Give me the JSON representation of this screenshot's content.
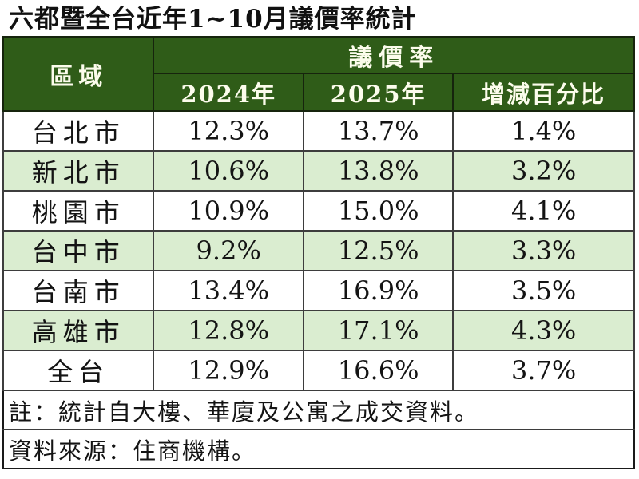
{
  "title": "六都暨全台近年1~10月議價率統計",
  "colors": {
    "header_green": "#2F5C18",
    "stripe_green": "#DAEDD0",
    "header_text": "#FCFCEC",
    "body_text": "#141414"
  },
  "table": {
    "region_header": "區域",
    "group_header": "議價率",
    "col_headers": [
      "2024年",
      "2025年",
      "增減百分比"
    ],
    "rows": [
      {
        "region": "台北市",
        "y2024": "12.3%",
        "y2025": "13.7%",
        "diff": "1.4%"
      },
      {
        "region": "新北市",
        "y2024": "10.6%",
        "y2025": "13.8%",
        "diff": "3.2%"
      },
      {
        "region": "桃園市",
        "y2024": "10.9%",
        "y2025": "15.0%",
        "diff": "4.1%"
      },
      {
        "region": "台中市",
        "y2024": "9.2%",
        "y2025": "12.5%",
        "diff": "3.3%"
      },
      {
        "region": "台南市",
        "y2024": "13.4%",
        "y2025": "16.9%",
        "diff": "3.5%"
      },
      {
        "region": "高雄市",
        "y2024": "12.8%",
        "y2025": "17.1%",
        "diff": "4.3%"
      },
      {
        "region": "全台",
        "y2024": "12.9%",
        "y2025": "16.6%",
        "diff": "3.7%"
      }
    ],
    "note": "註：統計自大樓、華廈及公寓之成交資料。",
    "source": "資料來源：住商機構。"
  },
  "chart_data": {
    "type": "table",
    "title": "六都暨全台近年1~10月議價率統計",
    "columns": [
      "區域",
      "議價率 2024年",
      "議價率 2025年",
      "增減百分比"
    ],
    "unit": "%",
    "rows": [
      [
        "台北市",
        12.3,
        13.7,
        1.4
      ],
      [
        "新北市",
        10.6,
        13.8,
        3.2
      ],
      [
        "桃園市",
        10.9,
        15.0,
        4.1
      ],
      [
        "台中市",
        9.2,
        12.5,
        3.3
      ],
      [
        "台南市",
        13.4,
        16.9,
        3.5
      ],
      [
        "高雄市",
        12.8,
        17.1,
        4.3
      ],
      [
        "全台",
        12.9,
        16.6,
        3.7
      ]
    ],
    "notes": [
      "註：統計自大樓、華廈及公寓之成交資料。",
      "資料來源：住商機構。"
    ]
  }
}
